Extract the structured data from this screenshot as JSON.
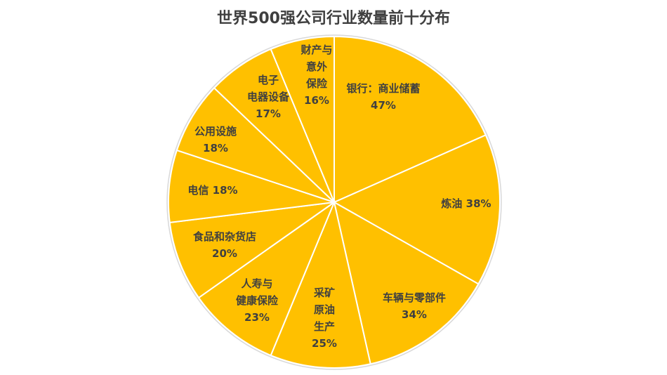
{
  "chart_data": {
    "type": "pie",
    "title": "世界500强公司行业数量前十分布",
    "colors": {
      "slice": "#FFC000",
      "border": "#ffffff",
      "text": "#404040"
    },
    "slices": [
      {
        "label": "银行：商业储蓄",
        "value": 47,
        "value_text": "47%",
        "lines": [
          "银行：商业储蓄",
          "47%"
        ]
      },
      {
        "label": "炼油",
        "value": 38,
        "value_text": "38%",
        "lines": [
          "炼油 38%"
        ]
      },
      {
        "label": "车辆与零部件",
        "value": 34,
        "value_text": "34%",
        "lines": [
          "车辆与零部件",
          "34%"
        ]
      },
      {
        "label": "采矿原油生产",
        "value": 25,
        "value_text": "25%",
        "lines": [
          "采矿",
          "原油",
          "生产",
          "25%"
        ]
      },
      {
        "label": "人寿与健康保险",
        "value": 23,
        "value_text": "23%",
        "lines": [
          "人寿与",
          "健康保险",
          "23%"
        ]
      },
      {
        "label": "食品和杂货店",
        "value": 20,
        "value_text": "20%",
        "lines": [
          "食品和杂货店",
          "20%"
        ]
      },
      {
        "label": "电信",
        "value": 18,
        "value_text": "18%",
        "lines": [
          "电信 18%"
        ]
      },
      {
        "label": "公用设施",
        "value": 18,
        "value_text": "18%",
        "lines": [
          "公用设施",
          "18%"
        ]
      },
      {
        "label": "电子电器设备",
        "value": 17,
        "value_text": "17%",
        "lines": [
          "电子",
          "电器设备",
          "17%"
        ]
      },
      {
        "label": "财产与意外保险",
        "value": 16,
        "value_text": "16%",
        "lines": [
          "财产与",
          "意外",
          "保险",
          "16%"
        ]
      }
    ]
  }
}
